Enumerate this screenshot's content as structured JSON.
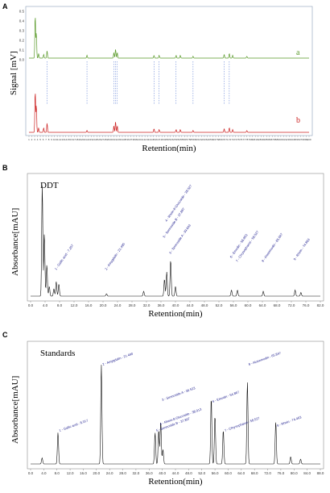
{
  "panels": [
    {
      "letter": "A",
      "ylabel": "Signal [mV]",
      "xlabel": "Retention(min)",
      "title": "",
      "ticks": [
        "1",
        "2",
        "3",
        "4",
        "5",
        "6",
        "7",
        "8",
        "9",
        "10",
        "11",
        "12",
        "13",
        "14",
        "15",
        "16",
        "17",
        "18",
        "19",
        "20",
        "21",
        "22",
        "23",
        "24",
        "25",
        "26",
        "27",
        "28",
        "29",
        "30",
        "31",
        "32",
        "33",
        "34",
        "35",
        "36",
        "37",
        "38",
        "39",
        "40",
        "41",
        "42",
        "43",
        "44",
        "45",
        "46",
        "47",
        "48",
        "49",
        "50",
        "51",
        "52",
        "53",
        "54",
        "55",
        "56",
        "57",
        "58",
        "59",
        "60",
        "61",
        "62",
        "63",
        "64",
        "65",
        "66",
        "67",
        "68",
        "69",
        "70",
        "71",
        "72",
        "73",
        "74",
        "75",
        "76",
        "77",
        "78",
        "79",
        "80",
        "81",
        "82",
        "83",
        "84",
        "85",
        "86",
        "87",
        "88",
        "89",
        "90",
        "91",
        "92",
        "93",
        "94",
        "95",
        "96",
        "97",
        "98",
        "99",
        "100"
      ],
      "yticks": [
        "0.5",
        "0.4",
        "0.3",
        "0.2",
        "0.1",
        "0.0"
      ],
      "trace_labels": [
        {
          "text": "a",
          "color": "#5a9a2a"
        },
        {
          "text": "b",
          "color": "#cc2222"
        }
      ]
    },
    {
      "letter": "B",
      "ylabel": "Absorbance[mAU]",
      "xlabel": "Retention(min)",
      "title": "DDT",
      "ticks": [
        "0.0",
        "4.0",
        "8.0",
        "12.0",
        "16.0",
        "20.0",
        "24.0",
        "28.0",
        "32.0",
        "36.0",
        "40.0",
        "44.0",
        "48.0",
        "52.0",
        "56.0",
        "60.0",
        "64.0",
        "68.0",
        "72.0",
        "76.0",
        "82.0"
      ],
      "annotations": [
        "1 - Gallic acid - 7.257",
        "2 - Amygdalin - 21.490",
        "3 - Sennoside A - 39.643",
        "4 - Rhein-8-Glucoside - 38.527",
        "5 - Sennoside B - 37.887",
        "6 - Emodin - 56.853",
        "7 - Chrysophanol - 58.527",
        "8 - Aloeemodin - 65.847",
        "9 - Rhein - 74.863"
      ]
    },
    {
      "letter": "C",
      "ylabel": "Absorbance[mAU]",
      "xlabel": "Retention(min)",
      "title": "Standards",
      "ticks": [
        "0.0",
        "4.0",
        "8.0",
        "12.0",
        "16.0",
        "20.0",
        "24.0",
        "28.0",
        "32.0",
        "36.0",
        "40.0",
        "44.0",
        "48.0",
        "52.0",
        "56.0",
        "60.0",
        "64.0",
        "68.0",
        "72.0",
        "76.0",
        "80.0",
        "84.0",
        "88.0"
      ],
      "annotations": [
        "1 - Gallic acid - 8.317",
        "2 - Amygdalin - 21.490",
        "3 - Sennoside A - 39.523",
        "4 - Rhein-8-Glucoside - 38.913",
        "5 - Sennoside B - 37.807",
        "6 - Emodin - 54.867",
        "7 - Chrysophanol - 58.527",
        "8 - Aloeemodin - 65.847",
        "9 - Rhein - 74.463"
      ]
    }
  ],
  "chart_data": [
    {
      "type": "line",
      "xlabel": "Retention(min)",
      "ylabel": "Signal [mV]",
      "xlim": [
        0,
        100
      ],
      "series": [
        {
          "name": "a",
          "color": "#5a9a2a",
          "peaks": [
            [
              3.2,
              0.48
            ],
            [
              3.6,
              0.28
            ],
            [
              4.4,
              0.05
            ],
            [
              6.2,
              0.04
            ],
            [
              7.4,
              0.08
            ],
            [
              21.5,
              0.03
            ],
            [
              31.0,
              0.06
            ],
            [
              31.6,
              0.1
            ],
            [
              32.2,
              0.06
            ],
            [
              45.2,
              0.03
            ],
            [
              47.0,
              0.03
            ],
            [
              53.0,
              0.03
            ],
            [
              54.5,
              0.03
            ],
            [
              59.0,
              0.02
            ],
            [
              70.0,
              0.04
            ],
            [
              71.8,
              0.05
            ],
            [
              73.0,
              0.03
            ],
            [
              78.0,
              0.02
            ]
          ]
        },
        {
          "name": "b",
          "color": "#cc2222",
          "peaks": [
            [
              3.2,
              0.46
            ],
            [
              3.6,
              0.3
            ],
            [
              4.4,
              0.05
            ],
            [
              6.2,
              0.05
            ],
            [
              7.4,
              0.1
            ],
            [
              21.5,
              0.02
            ],
            [
              31.0,
              0.07
            ],
            [
              31.6,
              0.12
            ],
            [
              32.2,
              0.07
            ],
            [
              45.2,
              0.04
            ],
            [
              47.0,
              0.03
            ],
            [
              53.0,
              0.03
            ],
            [
              54.5,
              0.03
            ],
            [
              59.0,
              0.02
            ],
            [
              70.0,
              0.04
            ],
            [
              71.8,
              0.05
            ],
            [
              73.0,
              0.03
            ],
            [
              78.0,
              0.02
            ]
          ]
        }
      ]
    },
    {
      "type": "line",
      "title": "DDT",
      "xlabel": "Retention(min)",
      "ylabel": "Absorbance[mAU]",
      "xlim": [
        0,
        82
      ],
      "peaks": [
        [
          3.3,
          0.92
        ],
        [
          3.9,
          0.52
        ],
        [
          4.6,
          0.26
        ],
        [
          5.3,
          0.08
        ],
        [
          6.6,
          0.06
        ],
        [
          7.26,
          0.12
        ],
        [
          8.0,
          0.1
        ],
        [
          21.49,
          0.02
        ],
        [
          32.0,
          0.04
        ],
        [
          37.89,
          0.14
        ],
        [
          38.53,
          0.2
        ],
        [
          39.64,
          0.3
        ],
        [
          41.0,
          0.08
        ],
        [
          56.85,
          0.05
        ],
        [
          58.53,
          0.05
        ],
        [
          65.85,
          0.04
        ],
        [
          74.86,
          0.05
        ],
        [
          76.5,
          0.03
        ]
      ]
    },
    {
      "type": "line",
      "title": "Standards",
      "xlabel": "Retention(min)",
      "ylabel": "Absorbance[mAU]",
      "xlim": [
        0,
        88
      ],
      "peaks": [
        [
          3.5,
          0.05
        ],
        [
          8.32,
          0.26
        ],
        [
          21.49,
          0.82
        ],
        [
          37.81,
          0.26
        ],
        [
          38.91,
          0.28
        ],
        [
          39.52,
          0.35
        ],
        [
          40.2,
          0.12
        ],
        [
          54.87,
          0.55
        ],
        [
          56.0,
          0.4
        ],
        [
          58.53,
          0.28
        ],
        [
          65.85,
          0.68
        ],
        [
          74.46,
          0.35
        ],
        [
          79.0,
          0.06
        ],
        [
          82.0,
          0.04
        ]
      ]
    }
  ]
}
